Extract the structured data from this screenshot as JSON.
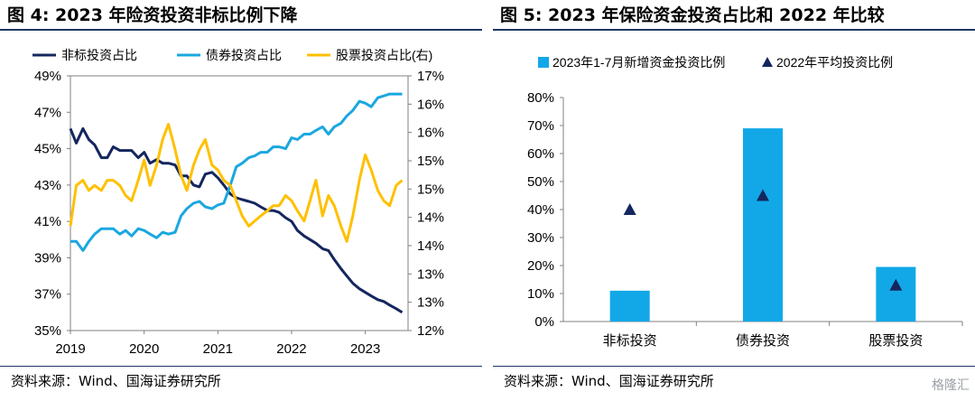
{
  "watermark": "格隆汇",
  "left": {
    "title": "图 4:  2023 年险资投资非标比例下降",
    "source": "资料来源：Wind、国海证券研究所",
    "chart_data": {
      "type": "line",
      "legend": [
        "非标投资占比",
        "债券投资占比",
        "股票投资占比(右)"
      ],
      "legend_position": "top",
      "y_left_ticks": [
        "49%",
        "47%",
        "45%",
        "43%",
        "41%",
        "39%",
        "37%",
        "35%"
      ],
      "y_left_range": [
        35,
        49
      ],
      "y_right_ticks": [
        "17%",
        "16%",
        "16%",
        "15%",
        "15%",
        "14%",
        "14%",
        "13%",
        "13%",
        "12%"
      ],
      "y_right_range": [
        12,
        17
      ],
      "x_ticks": [
        "2019",
        "2020",
        "2021",
        "2022",
        "2023"
      ],
      "x_range": [
        2019.0,
        2023.58
      ],
      "series": [
        {
          "name": "非标投资占比",
          "axis": "left",
          "color": "#14265e",
          "x": [
            2019.0,
            2019.08,
            2019.17,
            2019.25,
            2019.33,
            2019.42,
            2019.5,
            2019.58,
            2019.67,
            2019.75,
            2019.83,
            2019.92,
            2020.0,
            2020.08,
            2020.17,
            2020.25,
            2020.33,
            2020.42,
            2020.5,
            2020.58,
            2020.67,
            2020.75,
            2020.83,
            2020.92,
            2021.0,
            2021.08,
            2021.17,
            2021.25,
            2021.33,
            2021.42,
            2021.5,
            2021.58,
            2021.67,
            2021.75,
            2021.83,
            2021.92,
            2022.0,
            2022.08,
            2022.17,
            2022.25,
            2022.33,
            2022.42,
            2022.5,
            2022.58,
            2022.67,
            2022.75,
            2022.83,
            2022.92,
            2023.0,
            2023.08,
            2023.17,
            2023.25,
            2023.33,
            2023.42,
            2023.5
          ],
          "values": [
            46.1,
            45.3,
            46.1,
            45.5,
            45.2,
            44.5,
            44.5,
            45.1,
            44.9,
            44.9,
            44.9,
            44.5,
            44.8,
            44.2,
            44.4,
            44.2,
            44.2,
            44.1,
            43.5,
            43.5,
            43.0,
            42.9,
            43.6,
            43.7,
            43.4,
            43.0,
            42.5,
            42.3,
            42.2,
            42.1,
            42.0,
            41.8,
            41.6,
            41.6,
            41.5,
            41.2,
            41.0,
            40.5,
            40.2,
            40.0,
            39.8,
            39.5,
            39.4,
            38.9,
            38.4,
            38.0,
            37.6,
            37.3,
            37.1,
            36.9,
            36.7,
            36.6,
            36.4,
            36.2,
            36.0
          ]
        },
        {
          "name": "债券投资占比",
          "axis": "left",
          "color": "#1aa7e0",
          "x": [
            2019.0,
            2019.08,
            2019.17,
            2019.25,
            2019.33,
            2019.42,
            2019.5,
            2019.58,
            2019.67,
            2019.75,
            2019.83,
            2019.92,
            2020.0,
            2020.08,
            2020.17,
            2020.25,
            2020.33,
            2020.42,
            2020.5,
            2020.58,
            2020.67,
            2020.75,
            2020.83,
            2020.92,
            2021.0,
            2021.08,
            2021.17,
            2021.25,
            2021.33,
            2021.42,
            2021.5,
            2021.58,
            2021.67,
            2021.75,
            2021.83,
            2021.92,
            2022.0,
            2022.08,
            2022.17,
            2022.25,
            2022.33,
            2022.42,
            2022.5,
            2022.58,
            2022.67,
            2022.75,
            2022.83,
            2022.92,
            2023.0,
            2023.08,
            2023.17,
            2023.25,
            2023.33,
            2023.42,
            2023.5
          ],
          "values": [
            39.9,
            39.9,
            39.4,
            39.9,
            40.3,
            40.6,
            40.6,
            40.6,
            40.3,
            40.5,
            40.2,
            40.6,
            40.5,
            40.3,
            40.1,
            40.4,
            40.3,
            40.4,
            41.3,
            41.7,
            42.0,
            42.1,
            41.8,
            41.7,
            41.9,
            42.0,
            43.0,
            44.0,
            44.2,
            44.5,
            44.6,
            44.8,
            44.8,
            45.1,
            45.1,
            45.0,
            45.6,
            45.5,
            45.8,
            45.8,
            46.0,
            46.2,
            45.8,
            46.2,
            46.4,
            46.8,
            47.1,
            47.6,
            47.5,
            47.3,
            47.8,
            47.9,
            48.0,
            48.0,
            48.0
          ]
        },
        {
          "name": "股票投资占比(右)",
          "axis": "right",
          "color": "#ffc000",
          "x": [
            2019.0,
            2019.08,
            2019.17,
            2019.25,
            2019.33,
            2019.42,
            2019.5,
            2019.58,
            2019.67,
            2019.75,
            2019.83,
            2019.92,
            2020.0,
            2020.08,
            2020.17,
            2020.25,
            2020.33,
            2020.42,
            2020.5,
            2020.58,
            2020.67,
            2020.75,
            2020.83,
            2020.92,
            2021.0,
            2021.08,
            2021.17,
            2021.25,
            2021.33,
            2021.42,
            2021.5,
            2021.58,
            2021.67,
            2021.75,
            2021.83,
            2021.92,
            2022.0,
            2022.08,
            2022.17,
            2022.25,
            2022.33,
            2022.42,
            2022.5,
            2022.58,
            2022.67,
            2022.75,
            2022.83,
            2022.92,
            2023.0,
            2023.08,
            2023.17,
            2023.25,
            2023.33,
            2023.42,
            2023.5
          ],
          "values": [
            14.05,
            14.85,
            14.95,
            14.75,
            14.85,
            14.75,
            14.95,
            14.95,
            14.85,
            14.65,
            14.55,
            14.95,
            15.35,
            14.85,
            15.25,
            15.75,
            16.05,
            15.55,
            15.05,
            14.75,
            15.25,
            15.55,
            15.75,
            15.25,
            15.15,
            14.95,
            14.85,
            14.55,
            14.25,
            14.05,
            14.15,
            14.25,
            14.35,
            14.45,
            14.45,
            14.65,
            14.55,
            14.35,
            14.15,
            14.55,
            14.95,
            14.25,
            14.65,
            14.45,
            14.05,
            13.75,
            14.25,
            14.95,
            15.45,
            15.15,
            14.75,
            14.55,
            14.45,
            14.85,
            14.95
          ]
        }
      ]
    }
  },
  "right": {
    "title": "图 5:  2023 年保险资金投资占比和 2022 年比较",
    "source": "资料来源：Wind、国海证券研究所",
    "chart_data": {
      "type": "bar",
      "categories": [
        "非标投资",
        "债券投资",
        "股票投资"
      ],
      "legend_position": "top",
      "y_ticks": [
        "80%",
        "70%",
        "60%",
        "50%",
        "40%",
        "30%",
        "20%",
        "10%",
        "0%"
      ],
      "ylim": [
        0,
        80
      ],
      "series": [
        {
          "name": "2023年1-7月新增资金投资比例",
          "kind": "bar",
          "color": "#12a8e8",
          "values": [
            11,
            69,
            19.5
          ]
        },
        {
          "name": "2022年平均投资比例",
          "kind": "marker",
          "color": "#14265e",
          "values": [
            40,
            45,
            13
          ]
        }
      ]
    }
  }
}
